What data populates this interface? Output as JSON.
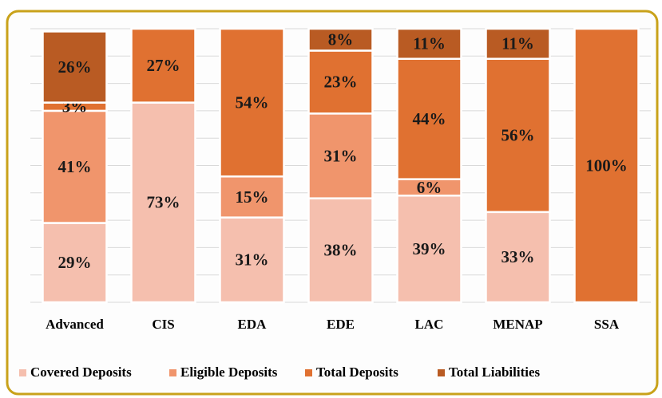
{
  "chart_data": {
    "type": "stacked_bar",
    "categories": [
      "Advanced",
      "CIS",
      "EDA",
      "EDE",
      "LAC",
      "MENAP",
      "SSA"
    ],
    "series": [
      {
        "name": "Covered Deposits",
        "color": "#f5bfae",
        "values": [
          29,
          73,
          31,
          38,
          39,
          33,
          0
        ],
        "value_labels": [
          "29%",
          "73%",
          "31%",
          "38%",
          "39%",
          "33%",
          null
        ]
      },
      {
        "name": "Eligible Deposits",
        "color": "#f0956c",
        "values": [
          41,
          0,
          15,
          31,
          6,
          0,
          0
        ],
        "value_labels": [
          "41%",
          null,
          "15%",
          "31%",
          "6%",
          null,
          null
        ]
      },
      {
        "name": "Total Deposits",
        "color": "#e07131",
        "values": [
          3,
          27,
          54,
          23,
          44,
          56,
          100
        ],
        "value_labels": [
          "3%",
          "27%",
          "54%",
          "23%",
          "44%",
          "56%",
          "100%"
        ]
      },
      {
        "name": "Total Liabilities",
        "color": "#b95b23",
        "values": [
          26,
          0,
          0,
          8,
          11,
          11,
          0
        ],
        "value_labels": [
          "26%",
          null,
          null,
          "8%",
          "11%",
          "11%",
          null
        ]
      }
    ],
    "ylim": [
      0,
      100
    ],
    "yticks": [
      0,
      10,
      20,
      30,
      40,
      50,
      60,
      70,
      80,
      90,
      100
    ],
    "grid": true
  }
}
